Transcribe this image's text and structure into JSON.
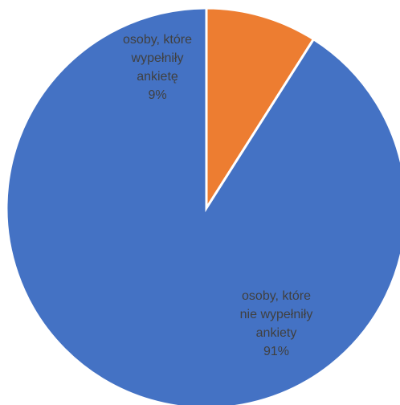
{
  "chart_data": {
    "type": "pie",
    "title": "",
    "start_angle_deg": 0,
    "direction": "clockwise",
    "legend": "none",
    "slices": [
      {
        "name": "osoby, które wypełniły ankietę",
        "value": 9,
        "color": "#ED7D31",
        "label_lines": [
          "osoby, które",
          "wypełniły",
          "ankietę",
          "9%"
        ]
      },
      {
        "name": "osoby, które nie wypełniły ankiety",
        "value": 91,
        "color": "#4472C4",
        "label_lines": [
          "osoby, które",
          "nie wypełniły",
          "ankiety",
          "91%"
        ]
      }
    ]
  }
}
